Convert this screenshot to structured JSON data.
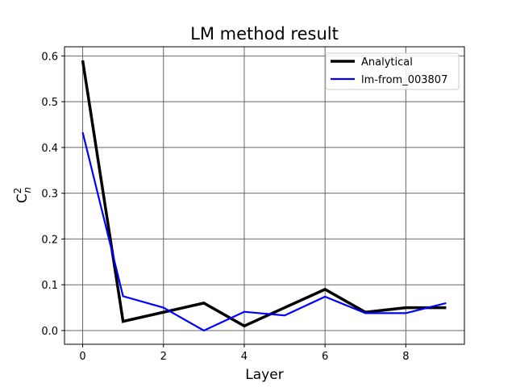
{
  "chart_data": {
    "type": "line",
    "title": "LM method result",
    "xlabel": "Layer",
    "ylabel": "C²ₙ",
    "ylabel_parts": {
      "base": "C",
      "sup": "2",
      "sub": "n"
    },
    "xlim": [
      -0.45,
      9.45
    ],
    "ylim": [
      -0.03,
      0.62
    ],
    "xticks": [
      0,
      2,
      4,
      6,
      8
    ],
    "yticks": [
      0.0,
      0.1,
      0.2,
      0.3,
      0.4,
      0.5,
      0.6
    ],
    "xtick_labels": [
      "0",
      "2",
      "4",
      "6",
      "8"
    ],
    "ytick_labels": [
      "0.0",
      "0.1",
      "0.2",
      "0.3",
      "0.4",
      "0.5",
      "0.6"
    ],
    "grid": true,
    "legend_position": "top-right",
    "x": [
      0,
      1,
      2,
      3,
      4,
      5,
      6,
      7,
      8,
      9
    ],
    "series": [
      {
        "name": "Analytical",
        "color": "#000000",
        "values": [
          0.59,
          0.02,
          0.04,
          0.06,
          0.01,
          0.05,
          0.09,
          0.04,
          0.05,
          0.05
        ]
      },
      {
        "name": "lm-from_003807",
        "color": "#0000ff",
        "values": [
          0.433,
          0.075,
          0.05,
          0.0,
          0.041,
          0.033,
          0.074,
          0.038,
          0.038,
          0.06
        ]
      }
    ]
  }
}
